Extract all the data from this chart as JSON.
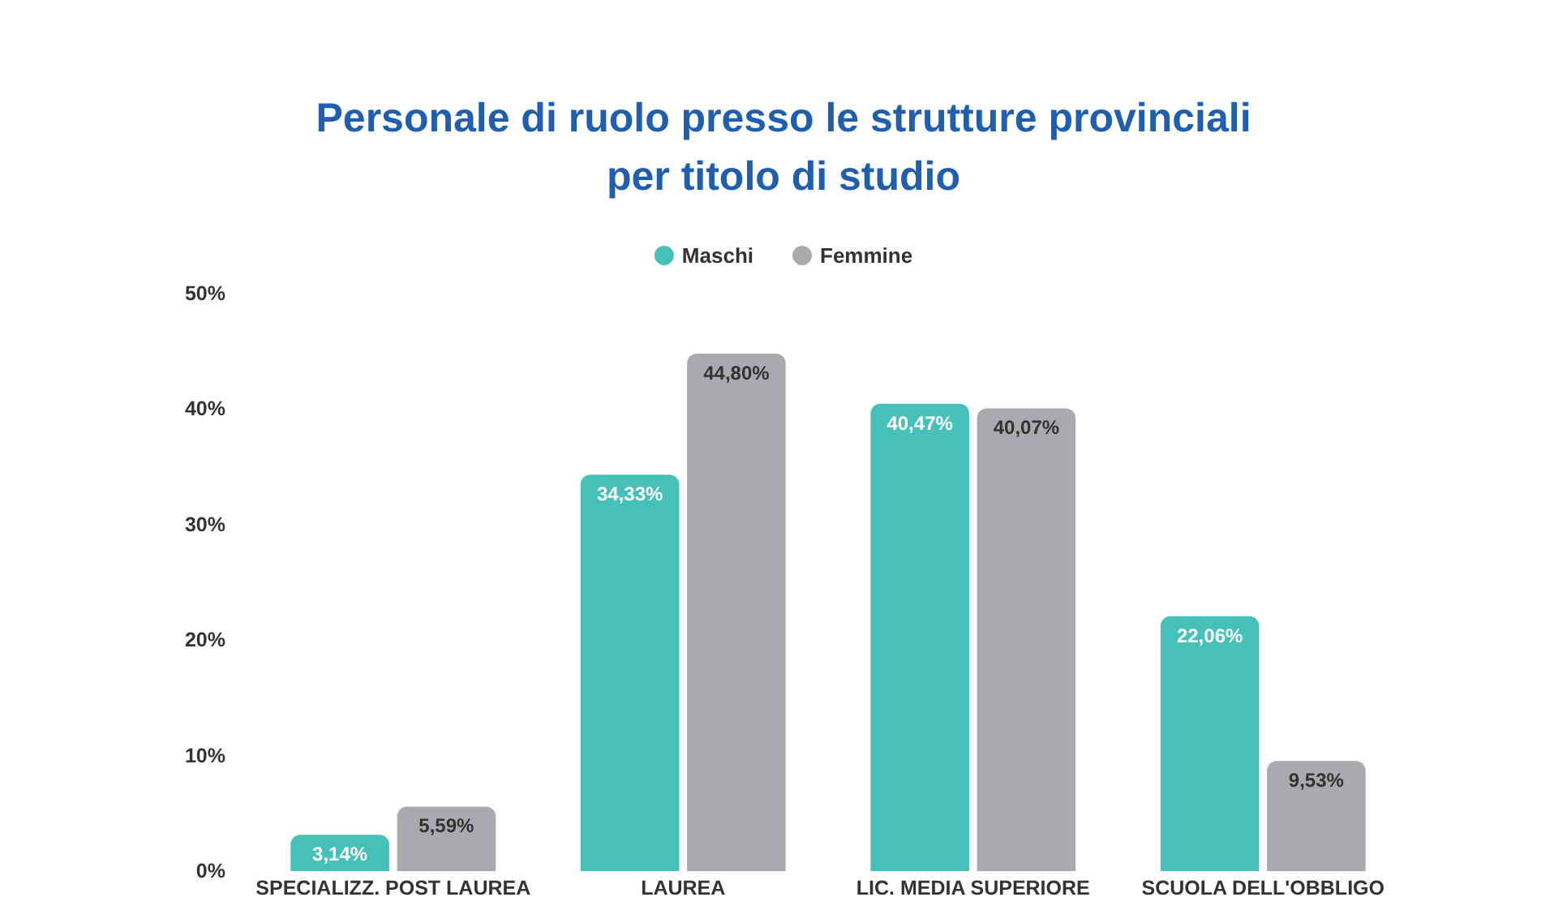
{
  "chart_data": {
    "type": "bar",
    "title": "Personale di ruolo presso le strutture provinciali\nper titolo di studio",
    "categories": [
      "SPECIALIZZ. POST LAUREA",
      "LAUREA",
      "LIC. MEDIA SUPERIORE",
      "SCUOLA DELL'OBBLIGO"
    ],
    "series": [
      {
        "name": "Maschi",
        "color": "#45c1b9",
        "values": [
          3.14,
          34.33,
          40.47,
          22.06
        ],
        "value_labels": [
          "3,14%",
          "34,33%",
          "40,47%",
          "22,06%"
        ]
      },
      {
        "name": "Femmine",
        "color": "#a9aaad",
        "values": [
          5.59,
          44.8,
          40.07,
          9.53
        ],
        "value_labels": [
          "5,59%",
          "44,80%",
          "40,07%",
          "9,53%"
        ]
      }
    ],
    "ylim": [
      0,
      50
    ],
    "yticks": [
      {
        "value": 0,
        "label": "0%"
      },
      {
        "value": 10,
        "label": "10%"
      },
      {
        "value": 20,
        "label": "20%"
      },
      {
        "value": 30,
        "label": "30%"
      },
      {
        "value": 40,
        "label": "40%"
      },
      {
        "value": 50,
        "label": "50%"
      }
    ],
    "legend": "top",
    "grid": false
  }
}
